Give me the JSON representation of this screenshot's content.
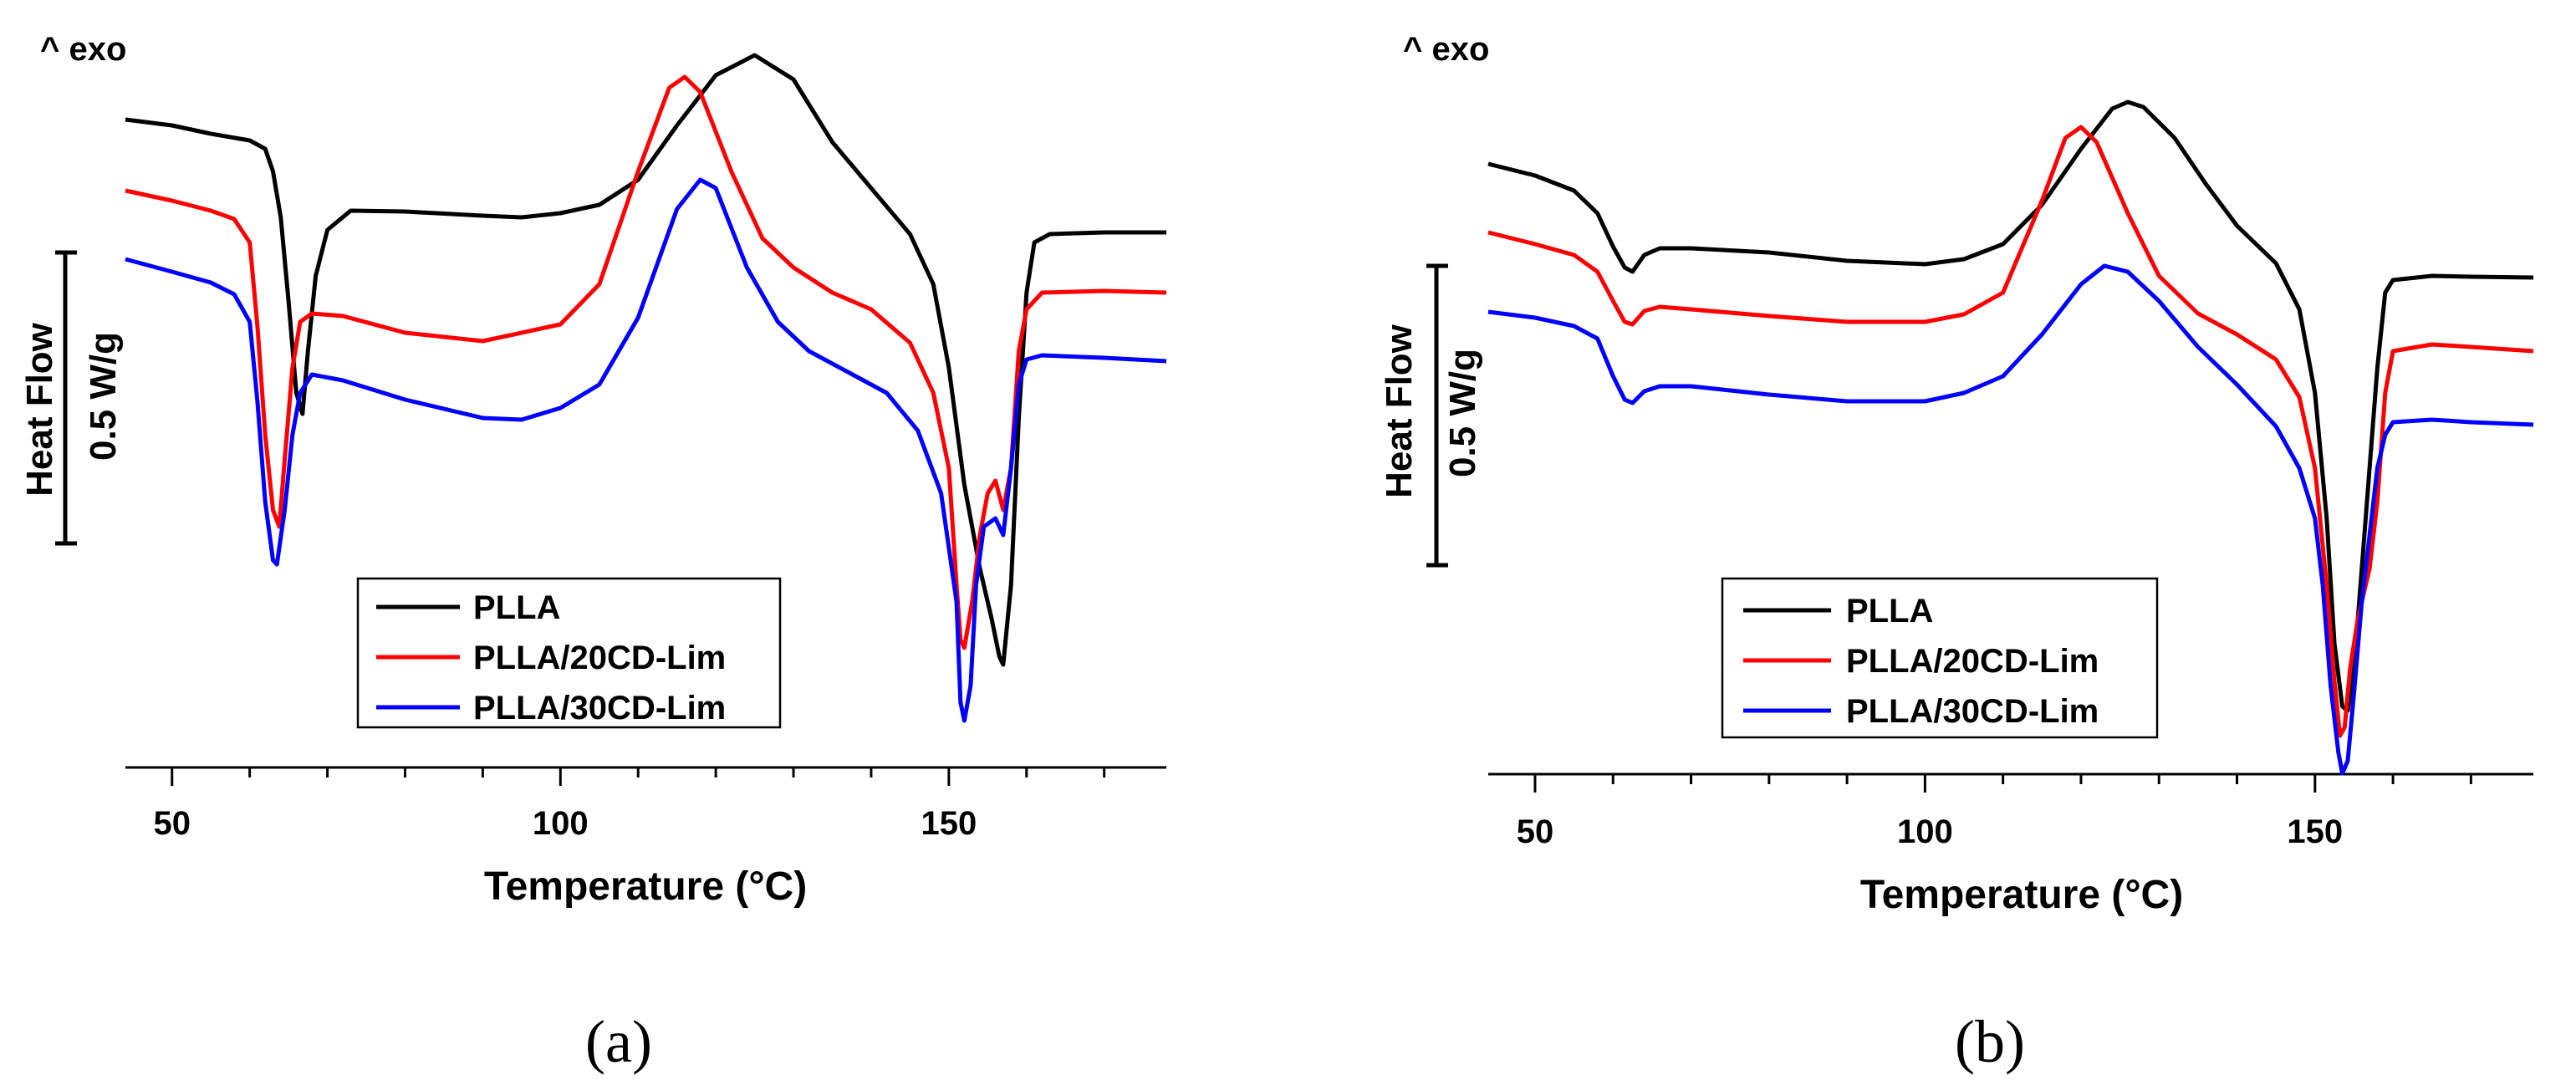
{
  "chart_data": [
    {
      "type": "line",
      "panel": "(a)",
      "exo_label": "^ exo",
      "title": "",
      "xlabel": "Temperature (°C)",
      "ylabel": "Heat Flow",
      "scale_bar_label": "0.5 W/g",
      "xlim": [
        44,
        178
      ],
      "x_ticks": [
        50,
        100,
        150
      ],
      "y_axis": "arbitrary offset heat flow (exo up), no tick values",
      "legend": [
        "PLLA",
        "PLLA/20CD-Lim",
        "PLLA/30CD-Lim"
      ],
      "series": [
        {
          "name": "PLLA",
          "color": "#000000",
          "points": [
            [
              44,
              143
            ],
            [
              50,
              150
            ],
            [
              55,
              160
            ],
            [
              60,
              168
            ],
            [
              62,
              178
            ],
            [
              63,
              205
            ],
            [
              64,
              260
            ],
            [
              65,
              360
            ],
            [
              66,
              470
            ],
            [
              66.8,
              495
            ],
            [
              67.5,
              420
            ],
            [
              68.5,
              330
            ],
            [
              70,
              275
            ],
            [
              73,
              252
            ],
            [
              80,
              253
            ],
            [
              90,
              258
            ],
            [
              95,
              260
            ],
            [
              100,
              255
            ],
            [
              105,
              245
            ],
            [
              110,
              215
            ],
            [
              115,
              150
            ],
            [
              120,
              90
            ],
            [
              125,
              66
            ],
            [
              130,
              95
            ],
            [
              135,
              170
            ],
            [
              140,
              225
            ],
            [
              145,
              280
            ],
            [
              148,
              340
            ],
            [
              150,
              440
            ],
            [
              152,
              580
            ],
            [
              154,
              680
            ],
            [
              155.5,
              740
            ],
            [
              156.5,
              785
            ],
            [
              157,
              795
            ],
            [
              158,
              700
            ],
            [
              159,
              500
            ],
            [
              160,
              350
            ],
            [
              161,
              290
            ],
            [
              163,
              280
            ],
            [
              170,
              278
            ],
            [
              178,
              278
            ]
          ]
        },
        {
          "name": "PLLA/20CD-Lim",
          "color": "#ff0000",
          "points": [
            [
              44,
              228
            ],
            [
              50,
              240
            ],
            [
              55,
              252
            ],
            [
              58,
              262
            ],
            [
              60,
              290
            ],
            [
              61,
              390
            ],
            [
              62,
              520
            ],
            [
              63,
              610
            ],
            [
              63.8,
              630
            ],
            [
              64.5,
              550
            ],
            [
              65.5,
              440
            ],
            [
              66.5,
              385
            ],
            [
              68,
              375
            ],
            [
              72,
              378
            ],
            [
              80,
              398
            ],
            [
              90,
              408
            ],
            [
              100,
              388
            ],
            [
              105,
              340
            ],
            [
              110,
              205
            ],
            [
              114,
              105
            ],
            [
              116,
              92
            ],
            [
              118,
              110
            ],
            [
              122,
              205
            ],
            [
              126,
              285
            ],
            [
              130,
              320
            ],
            [
              135,
              350
            ],
            [
              140,
              370
            ],
            [
              145,
              410
            ],
            [
              148,
              470
            ],
            [
              150,
              560
            ],
            [
              151,
              700
            ],
            [
              151.5,
              765
            ],
            [
              152,
              775
            ],
            [
              153,
              720
            ],
            [
              154,
              640
            ],
            [
              155,
              590
            ],
            [
              156,
              575
            ],
            [
              157,
              610
            ],
            [
              158,
              560
            ],
            [
              159,
              420
            ],
            [
              160,
              370
            ],
            [
              162,
              350
            ],
            [
              170,
              348
            ],
            [
              178,
              350
            ]
          ]
        },
        {
          "name": "PLLA/30CD-Lim",
          "color": "#0000ff",
          "points": [
            [
              44,
              310
            ],
            [
              50,
              325
            ],
            [
              55,
              338
            ],
            [
              58,
              352
            ],
            [
              60,
              385
            ],
            [
              61,
              480
            ],
            [
              62,
              600
            ],
            [
              63,
              670
            ],
            [
              63.5,
              675
            ],
            [
              64.5,
              610
            ],
            [
              65.5,
              520
            ],
            [
              66.5,
              470
            ],
            [
              68,
              448
            ],
            [
              72,
              455
            ],
            [
              80,
              478
            ],
            [
              90,
              500
            ],
            [
              95,
              502
            ],
            [
              100,
              488
            ],
            [
              105,
              460
            ],
            [
              110,
              380
            ],
            [
              115,
              250
            ],
            [
              118,
              215
            ],
            [
              120,
              225
            ],
            [
              124,
              320
            ],
            [
              128,
              385
            ],
            [
              132,
              420
            ],
            [
              138,
              450
            ],
            [
              142,
              470
            ],
            [
              146,
              515
            ],
            [
              149,
              590
            ],
            [
              151,
              720
            ],
            [
              151.5,
              840
            ],
            [
              152,
              862
            ],
            [
              152.8,
              820
            ],
            [
              153.5,
              700
            ],
            [
              154.5,
              630
            ],
            [
              156,
              620
            ],
            [
              157,
              640
            ],
            [
              158,
              560
            ],
            [
              159,
              460
            ],
            [
              160,
              430
            ],
            [
              162,
              425
            ],
            [
              170,
              428
            ],
            [
              178,
              432
            ]
          ]
        }
      ]
    },
    {
      "type": "line",
      "panel": "(b)",
      "exo_label": "^ exo",
      "title": "",
      "xlabel": "Temperature (°C)",
      "ylabel": "Heat Flow",
      "scale_bar_label": "0.5 W/g",
      "xlim": [
        44,
        178
      ],
      "x_ticks": [
        50,
        100,
        150
      ],
      "y_axis": "arbitrary offset heat flow (exo up), no tick values",
      "legend": [
        "PLLA",
        "PLLA/20CD-Lim",
        "PLLA/30CD-Lim"
      ],
      "series": [
        {
          "name": "PLLA",
          "color": "#000000",
          "points": [
            [
              44,
              196
            ],
            [
              50,
              210
            ],
            [
              55,
              228
            ],
            [
              58,
              255
            ],
            [
              60,
              295
            ],
            [
              61.5,
              320
            ],
            [
              62.5,
              325
            ],
            [
              64,
              305
            ],
            [
              66,
              297
            ],
            [
              70,
              297
            ],
            [
              80,
              302
            ],
            [
              90,
              312
            ],
            [
              100,
              316
            ],
            [
              105,
              310
            ],
            [
              110,
              292
            ],
            [
              115,
              245
            ],
            [
              120,
              178
            ],
            [
              124,
              130
            ],
            [
              126,
              122
            ],
            [
              128,
              128
            ],
            [
              132,
              165
            ],
            [
              136,
              220
            ],
            [
              140,
              270
            ],
            [
              145,
              315
            ],
            [
              148,
              370
            ],
            [
              150,
              470
            ],
            [
              151.5,
              620
            ],
            [
              152.5,
              770
            ],
            [
              153.5,
              845
            ],
            [
              154.2,
              850
            ],
            [
              155,
              800
            ],
            [
              156,
              680
            ],
            [
              157,
              560
            ],
            [
              158,
              440
            ],
            [
              159,
              350
            ],
            [
              160,
              335
            ],
            [
              165,
              330
            ],
            [
              170,
              331
            ],
            [
              178,
              332
            ]
          ]
        },
        {
          "name": "PLLA/20CD-Lim",
          "color": "#ff0000",
          "points": [
            [
              44,
              278
            ],
            [
              50,
              292
            ],
            [
              55,
              305
            ],
            [
              58,
              325
            ],
            [
              60,
              360
            ],
            [
              61.5,
              385
            ],
            [
              62.5,
              388
            ],
            [
              64,
              372
            ],
            [
              66,
              367
            ],
            [
              70,
              370
            ],
            [
              80,
              378
            ],
            [
              90,
              385
            ],
            [
              100,
              385
            ],
            [
              105,
              376
            ],
            [
              110,
              350
            ],
            [
              115,
              240
            ],
            [
              118,
              165
            ],
            [
              120,
              152
            ],
            [
              122,
              170
            ],
            [
              126,
              255
            ],
            [
              130,
              330
            ],
            [
              135,
              375
            ],
            [
              140,
              400
            ],
            [
              145,
              430
            ],
            [
              148,
              475
            ],
            [
              150,
              560
            ],
            [
              151.5,
              700
            ],
            [
              152.5,
              815
            ],
            [
              153.2,
              880
            ],
            [
              153.8,
              870
            ],
            [
              154.5,
              800
            ],
            [
              155.5,
              740
            ],
            [
              156.5,
              700
            ],
            [
              157,
              680
            ],
            [
              158,
              600
            ],
            [
              159,
              470
            ],
            [
              160,
              420
            ],
            [
              165,
              412
            ],
            [
              170,
              415
            ],
            [
              178,
              420
            ]
          ]
        },
        {
          "name": "PLLA/30CD-Lim",
          "color": "#0000ff",
          "points": [
            [
              44,
              373
            ],
            [
              50,
              380
            ],
            [
              55,
              390
            ],
            [
              58,
              405
            ],
            [
              60,
              450
            ],
            [
              61.5,
              478
            ],
            [
              62.5,
              482
            ],
            [
              64,
              468
            ],
            [
              66,
              462
            ],
            [
              70,
              462
            ],
            [
              80,
              472
            ],
            [
              90,
              480
            ],
            [
              100,
              480
            ],
            [
              105,
              470
            ],
            [
              110,
              450
            ],
            [
              115,
              400
            ],
            [
              120,
              340
            ],
            [
              123,
              318
            ],
            [
              126,
              325
            ],
            [
              130,
              360
            ],
            [
              135,
              415
            ],
            [
              140,
              460
            ],
            [
              145,
              510
            ],
            [
              148,
              560
            ],
            [
              150,
              620
            ],
            [
              151,
              700
            ],
            [
              152,
              820
            ],
            [
              153,
              900
            ],
            [
              153.5,
              925
            ],
            [
              154.2,
              910
            ],
            [
              155,
              830
            ],
            [
              156,
              720
            ],
            [
              157,
              640
            ],
            [
              158,
              560
            ],
            [
              159,
              520
            ],
            [
              160,
              505
            ],
            [
              165,
              502
            ],
            [
              170,
              505
            ],
            [
              178,
              508
            ]
          ]
        }
      ]
    }
  ],
  "captions": [
    "(a)",
    "(b)"
  ]
}
